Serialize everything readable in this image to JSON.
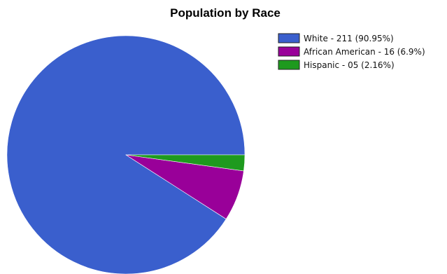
{
  "chart_data": {
    "type": "pie",
    "title": "Population by Race",
    "legend_position": "top-right",
    "slices": [
      {
        "label": "White",
        "value": 211,
        "percent": 90.95,
        "legend_text": "White - 211 (90.95%)",
        "color": "#3a5fcd"
      },
      {
        "label": "African American",
        "value": 16,
        "percent": 6.9,
        "legend_text": "African American - 16 (6.9%)",
        "color": "#990099"
      },
      {
        "label": "Hispanic",
        "value": 5,
        "percent": 2.16,
        "legend_text": "Hispanic - 05 (2.16%)",
        "color": "#1e9a1e"
      }
    ]
  }
}
